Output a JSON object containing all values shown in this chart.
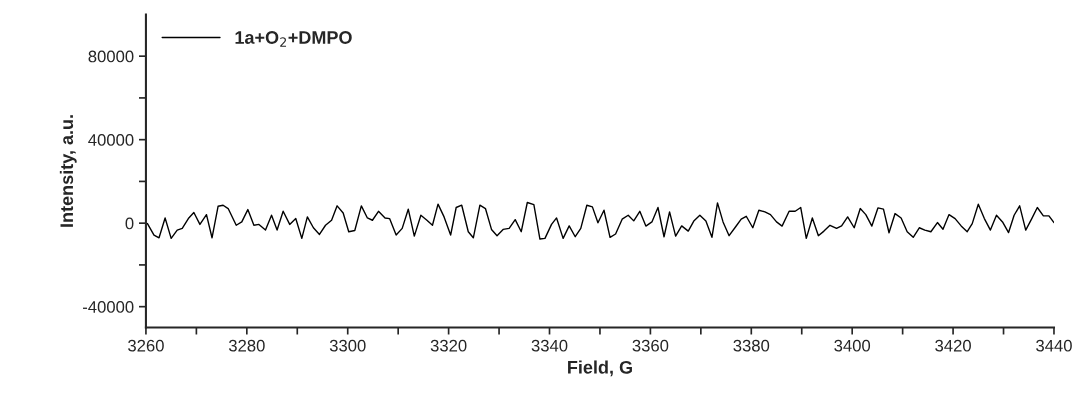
{
  "chart_data": {
    "type": "line",
    "xlabel": "Field, G",
    "ylabel": "Intensity, a.u.",
    "xlim": [
      3260,
      3440
    ],
    "ylim": [
      -50000,
      100000
    ],
    "xticks": [
      3260,
      {
        "value": 3270,
        "label": null
      },
      3280,
      {
        "value": 3290,
        "label": null
      },
      3300,
      {
        "value": 3310,
        "label": null
      },
      3320,
      {
        "value": 3330,
        "label": null
      },
      3340,
      {
        "value": 3350,
        "label": null
      },
      3360,
      {
        "value": 3370,
        "label": null
      },
      3380,
      {
        "value": 3390,
        "label": null
      },
      3400,
      {
        "value": 3410,
        "label": null
      },
      3420,
      {
        "value": 3430,
        "label": null
      },
      3440
    ],
    "yticks": [
      -40000,
      {
        "value": -20000,
        "label": null
      },
      0,
      {
        "value": 20000,
        "label": null
      },
      40000,
      {
        "value": 60000,
        "label": null
      },
      80000
    ],
    "grid": false,
    "legend": "top left",
    "line_style": "solid",
    "marker": "none",
    "series": [
      {
        "name": "1a+O$_{2}$+DMPO",
        "color": "#000000",
        "x": [
          3260.3,
          3261.6,
          3262.6,
          3263.8,
          3265.0,
          3266.2,
          3267.2,
          3268.5,
          3269.5,
          3270.7,
          3272.0,
          3273.1,
          3274.3,
          3275.3,
          3276.3,
          3277.9,
          3279.0,
          3280.2,
          3281.4,
          3282.4,
          3283.7,
          3284.9,
          3286.0,
          3287.2,
          3288.5,
          3289.7,
          3290.9,
          3292.0,
          3293.2,
          3294.4,
          3295.6,
          3296.8,
          3297.9,
          3299.1,
          3300.2,
          3301.4,
          3302.7,
          3303.9,
          3304.9,
          3306.1,
          3307.4,
          3308.3,
          3309.6,
          3310.8,
          3312.0,
          3313.2,
          3314.5,
          3315.7,
          3316.8,
          3317.9,
          3319.1,
          3320.4,
          3321.5,
          3322.6,
          3323.9,
          3324.9,
          3326.2,
          3327.3,
          3328.5,
          3329.6,
          3330.8,
          3332.0,
          3333.2,
          3334.4,
          3335.6,
          3336.9,
          3338.1,
          3339.1,
          3340.4,
          3341.4,
          3342.7,
          3343.9,
          3345.1,
          3346.2,
          3347.4,
          3348.5,
          3349.6,
          3350.8,
          3352.0,
          3353.1,
          3354.4,
          3355.6,
          3356.7,
          3357.9,
          3359.1,
          3360.3,
          3361.5,
          3362.7,
          3363.8,
          3365.0,
          3366.2,
          3367.5,
          3368.6,
          3369.8,
          3371.0,
          3372.2,
          3373.3,
          3374.4,
          3375.6,
          3376.9,
          3378.0,
          3379.0,
          3380.3,
          3381.5,
          3382.7,
          3383.8,
          3385.0,
          3386.1,
          3387.5,
          3388.7,
          3389.8,
          3390.9,
          3392.1,
          3393.3,
          3394.4,
          3395.6,
          3396.9,
          3397.9,
          3399.1,
          3400.4,
          3401.6,
          3402.7,
          3403.9,
          3405.1,
          3406.2,
          3407.3,
          3408.5,
          3409.7,
          3410.9,
          3412.1,
          3413.3,
          3414.4,
          3415.6,
          3416.9,
          3418.0,
          3419.2,
          3420.4,
          3421.6,
          3422.8,
          3423.8,
          3425.0,
          3426.2,
          3427.4,
          3428.6,
          3429.8,
          3431.0,
          3432.1,
          3433.2,
          3434.4,
          3435.6,
          3436.7,
          3437.9,
          3439.0,
          3440.0
        ],
        "values": [
          -200,
          -5700,
          -7000,
          2500,
          -7300,
          -3300,
          -2500,
          2500,
          5100,
          -600,
          4100,
          -7000,
          8100,
          8600,
          7000,
          -1000,
          600,
          6500,
          -1000,
          -600,
          -3300,
          3800,
          -3300,
          5700,
          -600,
          2200,
          -7300,
          3000,
          -2200,
          -5400,
          -1000,
          1400,
          8300,
          4900,
          -4100,
          -3500,
          8300,
          2500,
          1400,
          5700,
          2500,
          2200,
          -5700,
          -2500,
          6700,
          -6200,
          3800,
          1400,
          -1000,
          9100,
          3000,
          -5700,
          7500,
          8600,
          -4100,
          -7000,
          8600,
          7000,
          -3000,
          -6000,
          -3000,
          -2500,
          1700,
          -4100,
          9900,
          8900,
          -7600,
          -7300,
          -600,
          2500,
          -7300,
          -1300,
          -6500,
          -2500,
          8600,
          7800,
          200,
          6200,
          -6800,
          -5200,
          1900,
          3800,
          1100,
          5700,
          -1400,
          600,
          7500,
          -6500,
          5400,
          -6200,
          -1300,
          -3800,
          1000,
          3800,
          1000,
          -6800,
          9700,
          600,
          -6000,
          -1700,
          1900,
          3300,
          -2200,
          6200,
          5400,
          4100,
          600,
          -1400,
          5700,
          5700,
          7500,
          -7300,
          2500,
          -6000,
          -3800,
          -1000,
          -2500,
          -1300,
          3000,
          -2200,
          7000,
          4100,
          -1400,
          7300,
          6700,
          -4600,
          4600,
          2500,
          -4100,
          -6800,
          -2200,
          -3300,
          -4100,
          300,
          -2900,
          4100,
          2200,
          -1300,
          -4100,
          -200,
          9100,
          2200,
          -3300,
          3800,
          600,
          -4500,
          3800,
          8300,
          -3300,
          2200,
          7500,
          3500,
          3500,
          300
        ]
      }
    ]
  }
}
